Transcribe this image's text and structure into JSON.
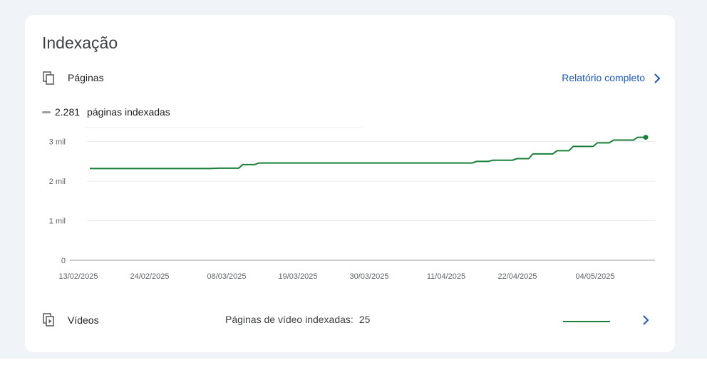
{
  "header": {
    "title": "Indexação"
  },
  "pages_section": {
    "label": "Páginas",
    "icon": "copy-pages-icon",
    "report_link": "Relatório completo"
  },
  "legend": {
    "value": "2.281",
    "label": "páginas indexadas",
    "swatch_color": "#9aa0a6"
  },
  "chart_data": {
    "type": "line",
    "color": "#188038",
    "y_ticks": [
      "3 mil",
      "2 mil",
      "1 mil",
      "0"
    ],
    "y_tick_values": [
      3000,
      2000,
      1000,
      0
    ],
    "x_ticks": [
      "13/02/2025",
      "24/02/2025",
      "08/03/2025",
      "19/03/2025",
      "30/03/2025",
      "11/04/2025",
      "22/04/2025",
      "04/05/2025"
    ],
    "ylim": [
      0,
      3300
    ],
    "grid": true,
    "series": [
      {
        "values": [
          [
            0,
            2320
          ],
          [
            15,
            2320
          ],
          [
            16,
            2330
          ],
          [
            19,
            2420
          ],
          [
            21,
            2460
          ],
          [
            40,
            2460
          ],
          [
            48,
            2500
          ],
          [
            50,
            2530
          ],
          [
            53,
            2570
          ],
          [
            55,
            2690
          ],
          [
            58,
            2770
          ],
          [
            60,
            2880
          ],
          [
            63,
            2970
          ],
          [
            65,
            3040
          ],
          [
            68,
            3110
          ],
          [
            69,
            3110
          ]
        ]
      }
    ]
  },
  "videos_section": {
    "label": "Vídeos",
    "icon": "video-pages-icon",
    "meta_label": "Páginas de vídeo indexadas:",
    "meta_value": "25",
    "sparkline_color": "#188038"
  }
}
